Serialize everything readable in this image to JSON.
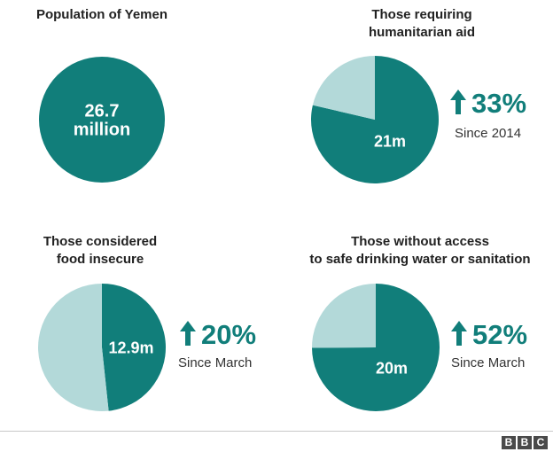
{
  "colors": {
    "primary": "#117e7a",
    "secondary": "#b3d9d9",
    "label": "#ffffff",
    "accent": "#117e7a"
  },
  "chart_data": [
    {
      "type": "pie",
      "title": "Population of Yemen",
      "slices": [
        {
          "label": "26.7 million",
          "value": 26.7
        }
      ],
      "center_label": "26.7\nmillion"
    },
    {
      "type": "pie",
      "title": "Those requiring\nhumanitarian aid",
      "slices": [
        {
          "label": "21m",
          "value": 21.0
        },
        {
          "label": "",
          "value": 5.7
        }
      ],
      "change": "33%",
      "change_note": "Since 2014"
    },
    {
      "type": "pie",
      "title": "Those considered\nfood insecure",
      "slices": [
        {
          "label": "12.9m",
          "value": 12.9
        },
        {
          "label": "",
          "value": 13.8
        }
      ],
      "change": "20%",
      "change_note": "Since March"
    },
    {
      "type": "pie",
      "title": "Those  without access\nto safe drinking water or sanitation",
      "slices": [
        {
          "label": "20m",
          "value": 20.0
        },
        {
          "label": "",
          "value": 6.7
        }
      ],
      "change": "52%",
      "change_note": "Since March"
    }
  ],
  "logo": {
    "letters": [
      "B",
      "B",
      "C"
    ]
  }
}
